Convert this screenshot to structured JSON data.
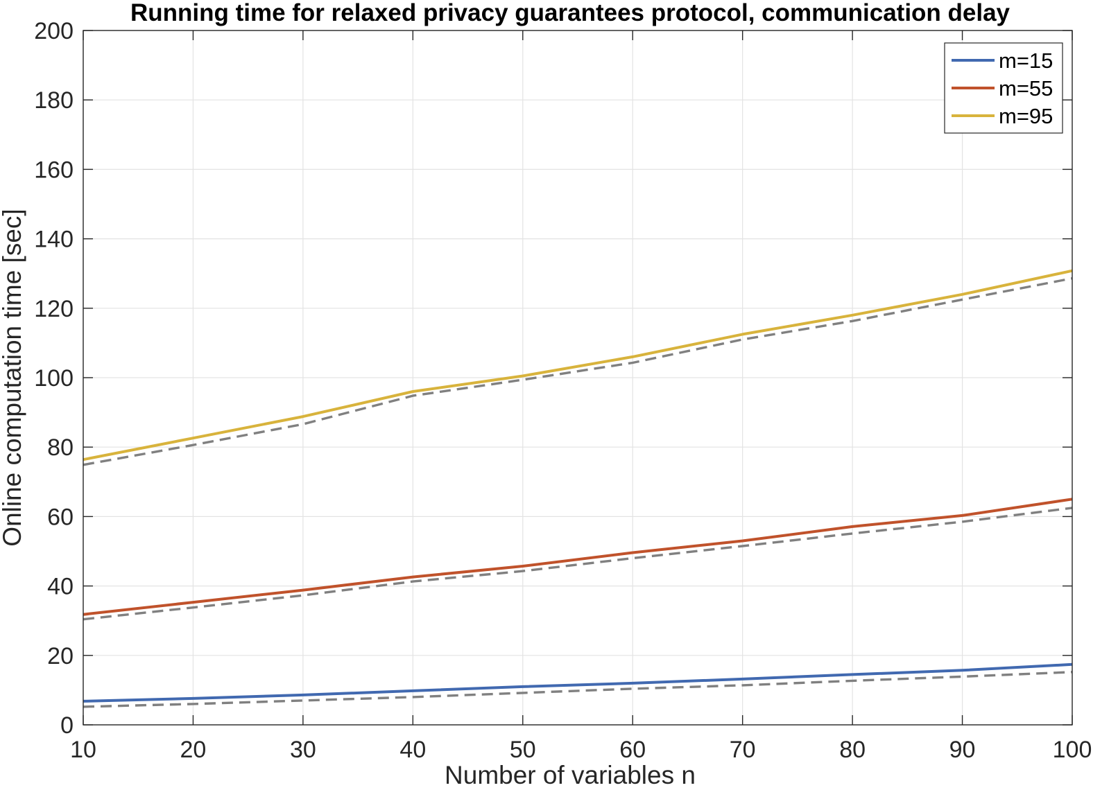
{
  "chart_data": {
    "type": "line",
    "title": "Running time for relaxed privacy guarantees protocol, communication delay",
    "xlabel": "Number of variables n",
    "ylabel": "Online computation time [sec]",
    "xlim": [
      10,
      100
    ],
    "ylim": [
      0,
      200
    ],
    "xticks": [
      10,
      20,
      30,
      40,
      50,
      60,
      70,
      80,
      90,
      100
    ],
    "yticks": [
      0,
      20,
      40,
      60,
      80,
      100,
      120,
      140,
      160,
      180,
      200
    ],
    "grid": true,
    "legend_position": "top-right",
    "x": [
      10,
      20,
      30,
      40,
      50,
      60,
      70,
      80,
      90,
      100
    ],
    "series": [
      {
        "name": "m=15",
        "color": "#4169B0",
        "values": [
          6.8,
          7.6,
          8.6,
          9.8,
          11.0,
          12.0,
          13.2,
          14.5,
          15.7,
          17.4
        ]
      },
      {
        "name": "m=55",
        "color": "#C0522B",
        "values": [
          31.8,
          35.3,
          38.8,
          42.6,
          45.7,
          49.6,
          53.0,
          57.1,
          60.3,
          65.0
        ]
      },
      {
        "name": "m=95",
        "color": "#D8B33C",
        "values": [
          76.4,
          82.6,
          88.8,
          96.0,
          100.5,
          106.0,
          112.5,
          118.0,
          124.0,
          130.8
        ]
      }
    ],
    "reference_series": [
      {
        "style": "dashed",
        "color": "#808080",
        "values": [
          5.2,
          6.0,
          7.0,
          8.0,
          9.2,
          10.4,
          11.4,
          12.7,
          13.9,
          15.2
        ]
      },
      {
        "style": "dashed",
        "color": "#808080",
        "values": [
          30.4,
          33.8,
          37.3,
          41.3,
          44.3,
          48.0,
          51.5,
          55.1,
          58.5,
          62.5
        ]
      },
      {
        "style": "dashed",
        "color": "#808080",
        "values": [
          74.9,
          80.6,
          86.6,
          94.8,
          99.4,
          104.3,
          111.0,
          116.3,
          122.5,
          128.6
        ]
      }
    ]
  }
}
